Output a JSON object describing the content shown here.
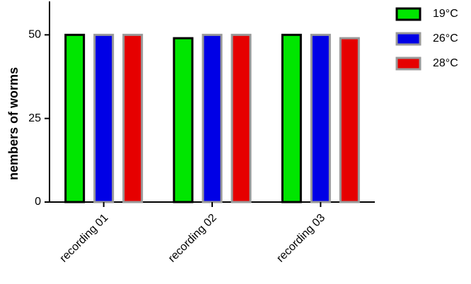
{
  "chart_data": {
    "type": "bar",
    "y_label": "nembers of worms",
    "categories": [
      "recording 01",
      "recording 02",
      "recording 03"
    ],
    "series": [
      {
        "name": "19°C",
        "color": "#00e600",
        "edgecolor": "#000000",
        "values": [
          50,
          49,
          50
        ]
      },
      {
        "name": "26°C",
        "color": "#0000e6",
        "edgecolor": "#999999",
        "values": [
          50,
          50,
          50
        ]
      },
      {
        "name": "28°C",
        "color": "#e60000",
        "edgecolor": "#999999",
        "values": [
          50,
          50,
          49
        ]
      }
    ],
    "ylim": [
      0,
      60
    ],
    "yticks": [
      0,
      25,
      50
    ],
    "legend": "upper right"
  }
}
